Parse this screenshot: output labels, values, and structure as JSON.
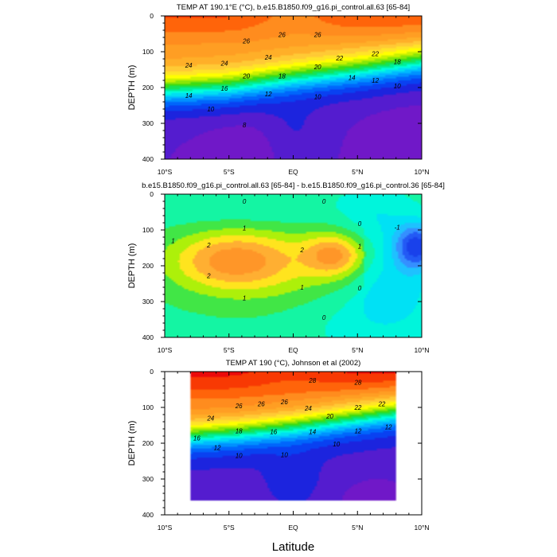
{
  "chart_data": [
    {
      "type": "heatmap",
      "subtype": "filled-contour",
      "title": "TEMP AT 190.1°E (°C), b.e15.B1850.f09_g16.pi_control.all.63 [65-84]",
      "ylabel": "DEPTH (m)",
      "xlabel": "",
      "x_range": [
        -10,
        10
      ],
      "y_range": [
        0,
        400
      ],
      "y_inverted": true,
      "x_ticks": [
        "10°S",
        "5°S",
        "EQ",
        "5°N",
        "10°N"
      ],
      "y_ticks": [
        "0",
        "100",
        "200",
        "300",
        "400"
      ],
      "contour_interval": 1,
      "value_range": [
        8,
        29
      ],
      "color_scale": "rainbow (violet=cold, red=warm)",
      "contour_labels": [
        "26",
        "24",
        "22",
        "20",
        "18",
        "16",
        "14",
        "12",
        "10",
        "8",
        "26",
        "24",
        "22",
        "20",
        "18",
        "16",
        "14",
        "12",
        "10",
        "26",
        "24",
        "22",
        "20",
        "18",
        "16",
        "14",
        "12",
        "10"
      ],
      "features": {
        "thermocline_depth_m": {
          "x": [
            -10,
            -5,
            0,
            5,
            10
          ],
          "y": [
            205,
            195,
            170,
            150,
            125
          ]
        },
        "warm_pool_max_c": 29,
        "deep_min_c": 8
      }
    },
    {
      "type": "heatmap",
      "subtype": "filled-contour",
      "title": "b.e15.B1850.f09_g16.pi_control.all.63 [65-84] - b.e15.B1850.f09_g16.pi_control.36 [65-84]",
      "ylabel": "DEPTH (m)",
      "xlabel": "",
      "x_range": [
        -10,
        10
      ],
      "y_range": [
        0,
        400
      ],
      "y_inverted": true,
      "x_ticks": [
        "10°S",
        "5°S",
        "EQ",
        "5°N",
        "10°N"
      ],
      "y_ticks": [
        "0",
        "100",
        "200",
        "300",
        "400"
      ],
      "contour_interval": 0.5,
      "value_range": [
        -2.5,
        2.5
      ],
      "contour_labels": [
        "0",
        "0",
        "0",
        "1",
        "1",
        "2",
        "2",
        "2",
        "1",
        "1",
        "1",
        "0",
        "0",
        "-1"
      ],
      "features": {
        "max_anomaly_c": 2.5,
        "max_anomaly_location": {
          "x": -4.8,
          "y": 185
        },
        "secondary_max": {
          "x": 3.2,
          "y": 170,
          "value": 2.5
        },
        "min_anomaly_c": -2.5,
        "min_anomaly_location": {
          "x": 9.6,
          "y": 145
        }
      }
    },
    {
      "type": "heatmap",
      "subtype": "filled-contour",
      "title": "TEMP AT 190 (°C), Johnson et al (2002)",
      "ylabel": "DEPTH (m)",
      "xlabel": "Latitude",
      "x_range": [
        -10,
        10
      ],
      "y_range": [
        0,
        400
      ],
      "y_inverted": true,
      "data_x_extent": [
        -8,
        8
      ],
      "data_y_extent": [
        0,
        360
      ],
      "x_ticks": [
        "10°S",
        "5°S",
        "EQ",
        "5°N",
        "10°N"
      ],
      "y_ticks": [
        "0",
        "100",
        "200",
        "300",
        "400"
      ],
      "contour_interval": 1,
      "value_range": [
        8,
        29
      ],
      "contour_labels": [
        "28",
        "26",
        "24",
        "22",
        "20",
        "18",
        "16",
        "14",
        "12",
        "10",
        "28",
        "26",
        "24",
        "22",
        "20",
        "18",
        "16",
        "14",
        "12",
        "10",
        "26",
        "24",
        "22",
        "20",
        "18",
        "16",
        "14",
        "12",
        "10"
      ],
      "features": {
        "thermocline_depth_m": {
          "x": [
            -8,
            -4,
            0,
            4,
            8
          ],
          "y": [
            175,
            165,
            150,
            130,
            110
          ]
        },
        "warm_pool_max_c": 29.5,
        "deep_min_c": 8
      }
    }
  ]
}
